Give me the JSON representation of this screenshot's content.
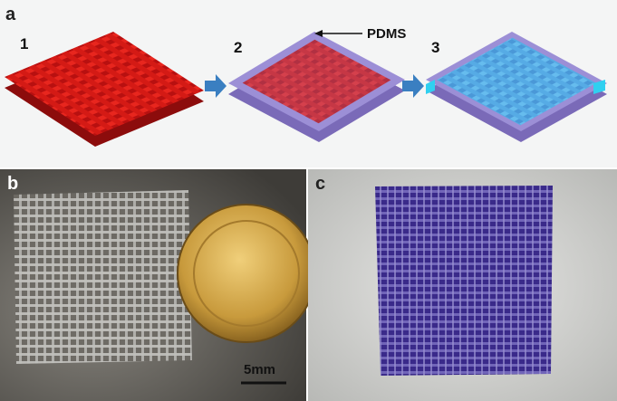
{
  "panels": [
    {
      "label": "a",
      "steps": [
        "1",
        "2",
        "3"
      ],
      "annotation": "PDMS"
    },
    {
      "label": "b",
      "scale_bar": "5mm"
    },
    {
      "label": "c"
    }
  ]
}
